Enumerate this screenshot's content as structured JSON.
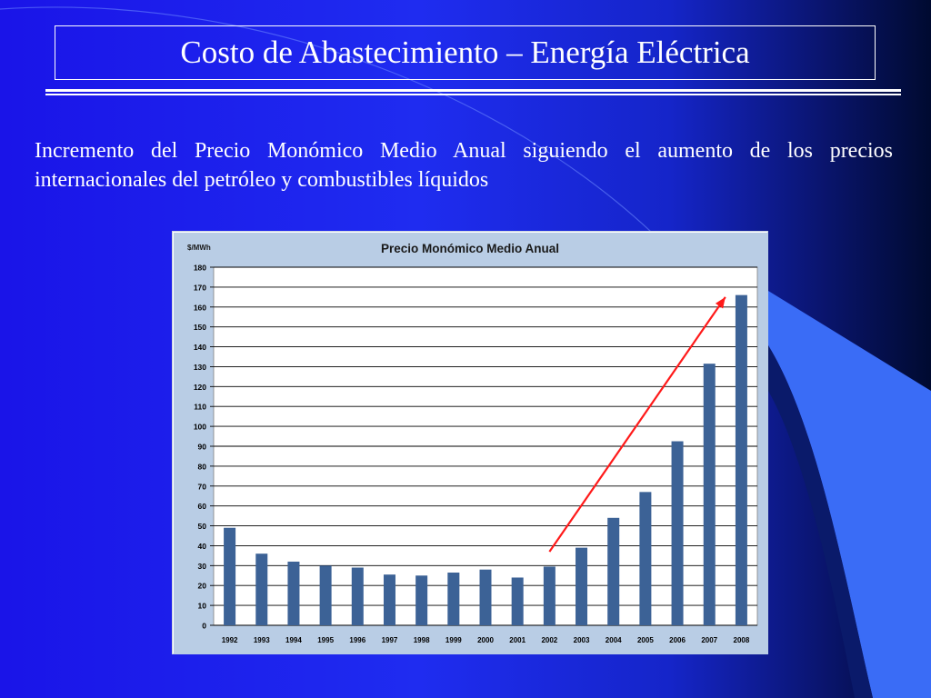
{
  "slide": {
    "title": "Costo de Abastecimiento – Energía Eléctrica",
    "body": "Incremento del Precio Monómico Medio Anual siguiendo el aumento de los precios internacionales del petróleo y combustibles líquidos"
  },
  "colors": {
    "bar": "#3c6296",
    "arrow": "#ff1a1a",
    "chart_background": "#b9cde5",
    "plot_background": "#ffffff",
    "title_text": "#ffffff"
  },
  "chart_data": {
    "type": "bar",
    "title": "Precio Monómico Medio Anual",
    "ylabel": "$/MWh",
    "xlabel": "",
    "categories": [
      "1992",
      "1993",
      "1994",
      "1995",
      "1996",
      "1997",
      "1998",
      "1999",
      "2000",
      "2001",
      "2002",
      "2003",
      "2004",
      "2005",
      "2006",
      "2007",
      "2008"
    ],
    "values": [
      49,
      36,
      32,
      30,
      29,
      25.5,
      25,
      26.5,
      28,
      24,
      29.5,
      39,
      54,
      67,
      92.5,
      131.5,
      166
    ],
    "ylim": [
      0,
      180
    ],
    "ytick_step": 10,
    "grid": true,
    "legend": "none",
    "annotation": {
      "type": "arrow",
      "from": {
        "x": "2002",
        "y": 37
      },
      "to": {
        "x": "2007.5",
        "y": 165
      }
    }
  }
}
